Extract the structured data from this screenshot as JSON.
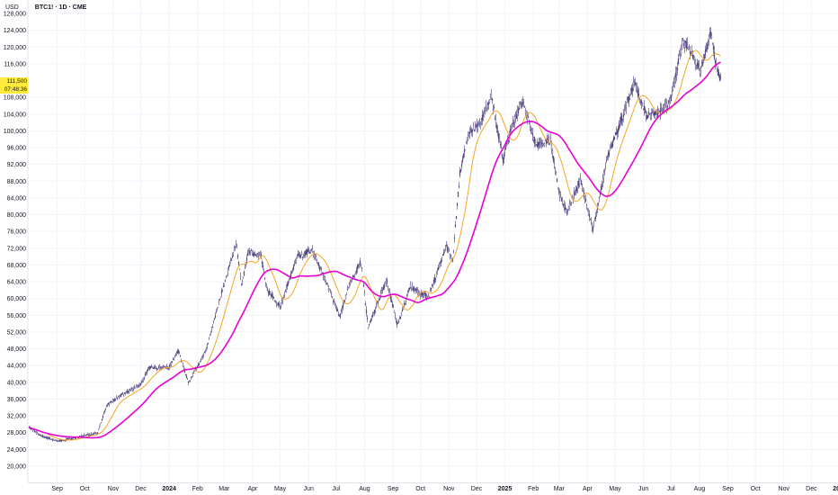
{
  "header": {
    "currency": "USD",
    "symbol": "BTC1! · 1D · CME"
  },
  "current_price": {
    "price": "111,500",
    "countdown": "07:48:36",
    "highlight_color": "#ffeb3b"
  },
  "colors": {
    "bull_candle": "#ffffff",
    "candle_outline": "#4a3a7a",
    "bear_candle": "#5b4b8a",
    "fast_ma": "#f5a623",
    "slow_ma": "#e600d4",
    "grid": "#f0f3fa",
    "axis_text": "#131722"
  },
  "chart_data": {
    "type": "candlestick",
    "title": "BTC1! · 1D · CME",
    "ylabel": "USD",
    "ylim": [
      18000,
      128000
    ],
    "price_scale": "right-to-left (axis on the left)",
    "y_ticks": [
      "20,000",
      "24,000",
      "28,000",
      "32,000",
      "36,000",
      "40,000",
      "44,000",
      "48,000",
      "52,000",
      "56,000",
      "60,000",
      "64,000",
      "68,000",
      "72,000",
      "76,000",
      "80,000",
      "84,000",
      "88,000",
      "92,000",
      "96,000",
      "100,000",
      "104,000",
      "108,000",
      "116,000",
      "120,000",
      "124,000",
      "128,000"
    ],
    "x_ticks": [
      {
        "label": "Sep",
        "month": "2023-09"
      },
      {
        "label": "Oct",
        "month": "2023-10"
      },
      {
        "label": "Nov",
        "month": "2023-11"
      },
      {
        "label": "Dec",
        "month": "2023-12"
      },
      {
        "label": "2024",
        "month": "2024-01",
        "year": true
      },
      {
        "label": "Feb",
        "month": "2024-02"
      },
      {
        "label": "Mar",
        "month": "2024-03"
      },
      {
        "label": "Apr",
        "month": "2024-04"
      },
      {
        "label": "May",
        "month": "2024-05"
      },
      {
        "label": "Jun",
        "month": "2024-06"
      },
      {
        "label": "Jul",
        "month": "2024-07"
      },
      {
        "label": "Aug",
        "month": "2024-08"
      },
      {
        "label": "Sep",
        "month": "2024-09"
      },
      {
        "label": "Oct",
        "month": "2024-10"
      },
      {
        "label": "Nov",
        "month": "2024-11"
      },
      {
        "label": "Dec",
        "month": "2024-12"
      },
      {
        "label": "2025",
        "month": "2025-01",
        "year": true
      },
      {
        "label": "Feb",
        "month": "2025-02"
      },
      {
        "label": "Mar",
        "month": "2025-03"
      },
      {
        "label": "Apr",
        "month": "2025-04"
      },
      {
        "label": "May",
        "month": "2025-05"
      },
      {
        "label": "Jun",
        "month": "2025-06"
      },
      {
        "label": "Jul",
        "month": "2025-07"
      },
      {
        "label": "Aug",
        "month": "2025-08"
      },
      {
        "label": "Sep",
        "month": "2025-09"
      },
      {
        "label": "Oct",
        "month": "2025-10"
      },
      {
        "label": "Nov",
        "month": "2025-11"
      },
      {
        "label": "Dec",
        "month": "2025-12"
      },
      {
        "label": "2026",
        "month": "2026-01",
        "year": true
      }
    ],
    "date_range": [
      "2023-08-01",
      "2025-08-25"
    ],
    "price_path": [
      [
        "2023-08-01",
        29400
      ],
      [
        "2023-08-15",
        27200
      ],
      [
        "2023-09-01",
        26000
      ],
      [
        "2023-09-15",
        26500
      ],
      [
        "2023-10-01",
        27300
      ],
      [
        "2023-10-15",
        28000
      ],
      [
        "2023-10-25",
        34500
      ],
      [
        "2023-11-10",
        37000
      ],
      [
        "2023-12-01",
        39500
      ],
      [
        "2023-12-10",
        43500
      ],
      [
        "2024-01-01",
        43500
      ],
      [
        "2024-01-11",
        47500
      ],
      [
        "2024-01-22",
        40000
      ],
      [
        "2024-02-10",
        47500
      ],
      [
        "2024-02-28",
        62000
      ],
      [
        "2024-03-14",
        73500
      ],
      [
        "2024-03-20",
        63000
      ],
      [
        "2024-03-27",
        71000
      ],
      [
        "2024-04-10",
        70500
      ],
      [
        "2024-04-17",
        62000
      ],
      [
        "2024-05-01",
        58000
      ],
      [
        "2024-05-20",
        70000
      ],
      [
        "2024-06-05",
        71500
      ],
      [
        "2024-06-20",
        64000
      ],
      [
        "2024-07-05",
        55500
      ],
      [
        "2024-07-15",
        63000
      ],
      [
        "2024-07-28",
        69000
      ],
      [
        "2024-08-05",
        53000
      ],
      [
        "2024-08-25",
        64500
      ],
      [
        "2024-09-06",
        53500
      ],
      [
        "2024-09-20",
        63000
      ],
      [
        "2024-10-01",
        61000
      ],
      [
        "2024-10-10",
        60500
      ],
      [
        "2024-10-29",
        72500
      ],
      [
        "2024-11-05",
        69000
      ],
      [
        "2024-11-13",
        90000
      ],
      [
        "2024-11-22",
        99000
      ],
      [
        "2024-12-05",
        101500
      ],
      [
        "2024-12-17",
        108500
      ],
      [
        "2024-12-30",
        93000
      ],
      [
        "2025-01-07",
        100000
      ],
      [
        "2025-01-20",
        107500
      ],
      [
        "2025-02-03",
        97000
      ],
      [
        "2025-02-20",
        97500
      ],
      [
        "2025-03-01",
        85000
      ],
      [
        "2025-03-10",
        80500
      ],
      [
        "2025-03-24",
        88500
      ],
      [
        "2025-04-07",
        76500
      ],
      [
        "2025-04-22",
        93000
      ],
      [
        "2025-05-10",
        104000
      ],
      [
        "2025-05-22",
        111500
      ],
      [
        "2025-06-05",
        103500
      ],
      [
        "2025-06-20",
        104500
      ],
      [
        "2025-07-01",
        107500
      ],
      [
        "2025-07-14",
        121500
      ],
      [
        "2025-07-25",
        118000
      ],
      [
        "2025-08-02",
        114000
      ],
      [
        "2025-08-13",
        123500
      ],
      [
        "2025-08-20",
        114500
      ],
      [
        "2025-08-25",
        111500
      ]
    ],
    "series": [
      {
        "type": "candlestick"
      },
      {
        "type": "moving_average",
        "color": "#f5a623",
        "period": 20
      },
      {
        "type": "moving_average",
        "color": "#e600d4",
        "period": 60
      }
    ],
    "grid": true,
    "legend": "none"
  }
}
